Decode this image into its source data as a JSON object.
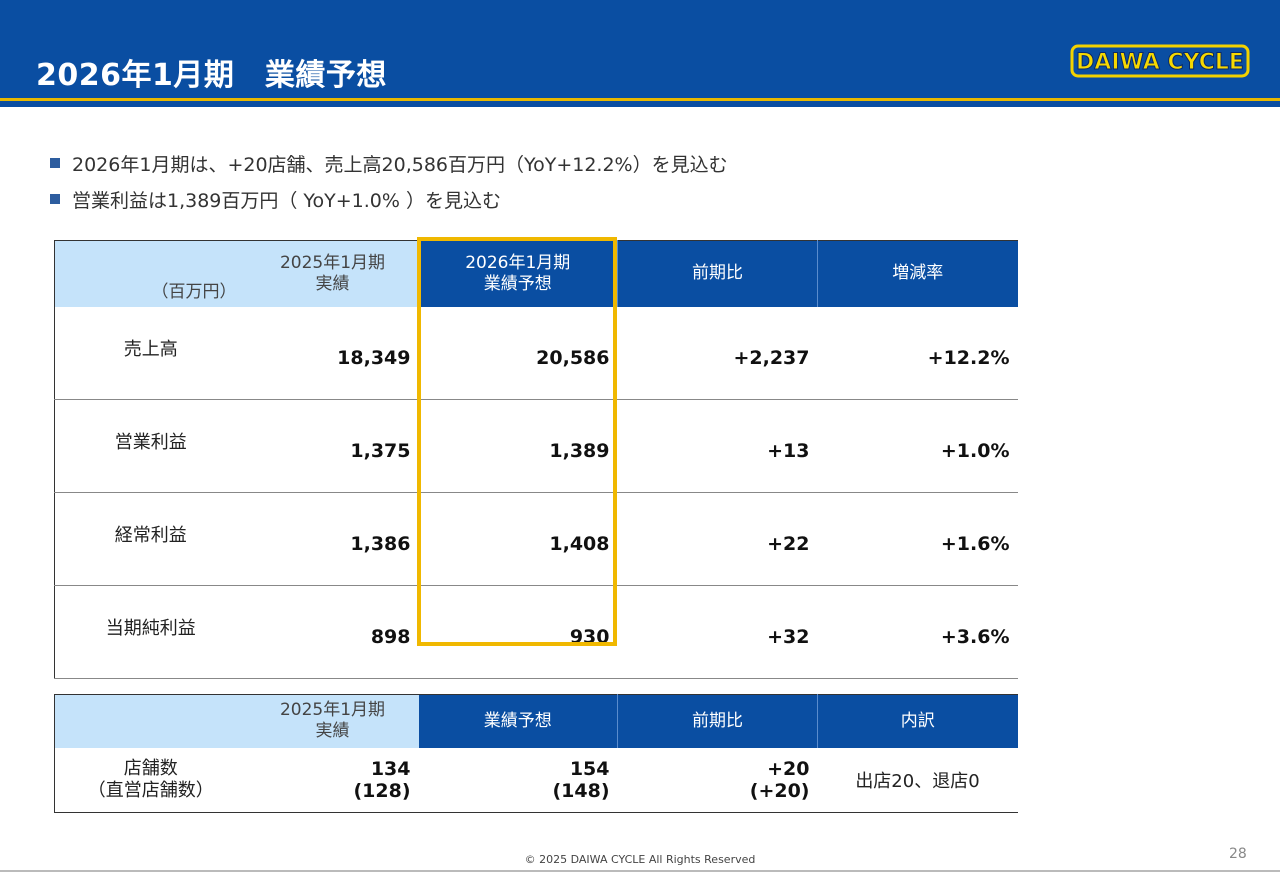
{
  "header": {
    "title": "2026年1月期　業績予想",
    "logo_text": "DAIWA CYCLE",
    "accent": "#0a4ea2",
    "highlight": "#f0b800"
  },
  "bullets": [
    "2026年1月期は、+20店舗、売上高20,586百万円（YoY+12.2%）を見込む",
    "営業利益は1,389百万円（ YoY+1.0% ）を見込む"
  ],
  "table1": {
    "unit": "（百万円）",
    "headers": [
      "2025年1月期\n実績",
      "2026年1月期\n業績予想",
      "前期比",
      "増減率"
    ],
    "rows": [
      {
        "label": "売上高",
        "values": [
          "18,349",
          "20,586",
          "+2,237",
          "+12.2%"
        ]
      },
      {
        "label": "営業利益",
        "values": [
          "1,375",
          "1,389",
          "+13",
          "+1.0%"
        ]
      },
      {
        "label": "経常利益",
        "values": [
          "1,386",
          "1,408",
          "+22",
          "+1.6%"
        ]
      },
      {
        "label": "当期純利益",
        "values": [
          "898",
          "930",
          "+32",
          "+3.6%"
        ]
      }
    ]
  },
  "table2": {
    "headers": [
      "2025年1月期\n実績",
      "業績予想",
      "前期比",
      "内訳"
    ],
    "row": {
      "label": "店舗数\n（直営店舗数）",
      "values": [
        "134\n(128)",
        "154\n(148)",
        "+20\n(+20)"
      ],
      "breakdown": "出店20、退店0"
    }
  },
  "footer": {
    "copyright": "© 2025 DAIWA CYCLE All Rights Reserved",
    "page_number": "28"
  }
}
